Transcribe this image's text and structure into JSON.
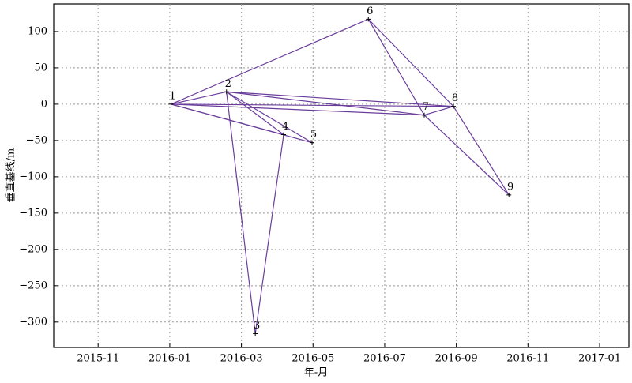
{
  "chart_data": {
    "type": "network",
    "x_label": "年-月",
    "y_label": "垂直基线/m",
    "xlim": [
      2015.73,
      2017.068
    ],
    "ylim": [
      -335,
      138
    ],
    "xticks": [
      {
        "value": 2015.8333,
        "label": "2015-11"
      },
      {
        "value": 2016.0,
        "label": "2016-01"
      },
      {
        "value": 2016.1667,
        "label": "2016-03"
      },
      {
        "value": 2016.3333,
        "label": "2016-05"
      },
      {
        "value": 2016.5,
        "label": "2016-07"
      },
      {
        "value": 2016.6667,
        "label": "2016-09"
      },
      {
        "value": 2016.8333,
        "label": "2016-11"
      },
      {
        "value": 2017.0,
        "label": "2017-01"
      }
    ],
    "yticks": [
      100,
      50,
      0,
      {
        "value": -50,
        "label": "−50"
      },
      {
        "value": -100,
        "label": "−100"
      },
      {
        "value": -150,
        "label": "−150"
      },
      {
        "value": -200,
        "label": "−200"
      },
      {
        "value": -250,
        "label": "−250"
      },
      {
        "value": -300,
        "label": "−300"
      }
    ],
    "grid": true,
    "color": "#6a3d9a",
    "nodes": {
      "labels": [
        "1",
        "2",
        "3",
        "4",
        "5",
        "6",
        "7",
        "8",
        "9"
      ],
      "x": [
        2016.003,
        2016.132,
        2016.199,
        2016.265,
        2016.331,
        2016.462,
        2016.592,
        2016.66,
        2016.789
      ],
      "y": [
        0,
        17,
        -316,
        -42,
        -53,
        117,
        -15,
        -3,
        -125
      ]
    },
    "edges": [
      [
        0,
        1
      ],
      [
        0,
        5
      ],
      [
        0,
        3
      ],
      [
        0,
        4
      ],
      [
        0,
        6
      ],
      [
        0,
        7
      ],
      [
        1,
        2
      ],
      [
        1,
        3
      ],
      [
        1,
        4
      ],
      [
        1,
        6
      ],
      [
        1,
        7
      ],
      [
        2,
        3
      ],
      [
        5,
        6
      ],
      [
        5,
        7
      ],
      [
        6,
        7
      ],
      [
        6,
        8
      ],
      [
        7,
        8
      ]
    ]
  }
}
